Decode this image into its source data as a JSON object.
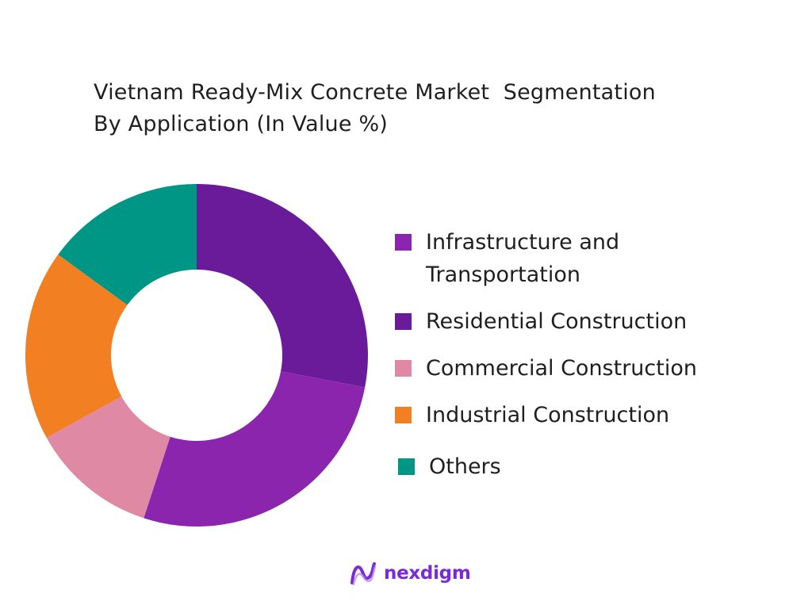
{
  "chart_data": {
    "type": "pie",
    "title_lines": [
      "Vietnam Ready-Mix Concrete Market  Segmentation",
      "By Application (In Value %)"
    ],
    "slices": [
      {
        "label": "Infrastructure and Transportation",
        "label_lines": [
          "Infrastructure and",
          "Transportation"
        ],
        "value": 27,
        "color": "#8b25ad"
      },
      {
        "label": "Residential Construction",
        "label_lines": [
          "Residential Construction"
        ],
        "value": 28,
        "color": "#6a1b9a"
      },
      {
        "label": "Commercial Construction",
        "label_lines": [
          "Commercial Construction"
        ],
        "value": 12,
        "color": "#e089a4"
      },
      {
        "label": "Industrial Construction",
        "label_lines": [
          "Industrial Construction"
        ],
        "value": 18,
        "color": "#f27f22"
      },
      {
        "label": "Others",
        "label_lines": [
          "Others"
        ],
        "value": 15,
        "color": "#009685"
      }
    ],
    "draw_order": [
      1,
      0,
      2,
      3,
      4
    ],
    "start_at": "top",
    "direction": "clockwise",
    "style": "donut",
    "legend_position": "right"
  },
  "branding": {
    "logo_text": "nexdigm",
    "logo_color": "#7a2bd6"
  }
}
